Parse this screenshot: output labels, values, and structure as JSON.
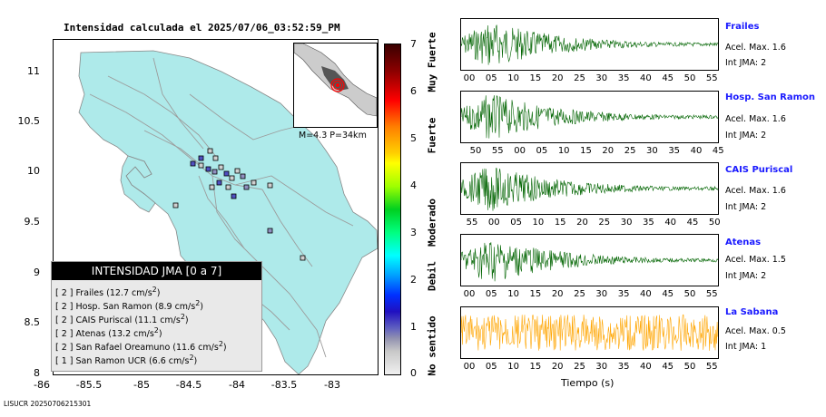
{
  "map": {
    "title": "Intensidad calculada el 2025/07/06_03:52:59_PM",
    "lat_ticks": [
      "11",
      "10.5",
      "10",
      "9.5",
      "9",
      "8.5",
      "8"
    ],
    "lon_ticks": [
      "-86",
      "-85.5",
      "-85",
      "-84.5",
      "-84",
      "-83.5",
      "-83"
    ],
    "inset_label": "M=4.3 P=34km",
    "colors": {
      "land": "#aeeaea",
      "roads": "#9c9c9c",
      "epicenter": "#ff0000"
    }
  },
  "legend": {
    "title": "INTENSIDAD JMA [0 a 7]",
    "items": [
      {
        "level": "[ 2 ]",
        "name": "Frailes",
        "value": "(12.7 cm/s",
        "sup": "2",
        "close": ")"
      },
      {
        "level": "[ 2 ]",
        "name": "Hosp. San Ramon",
        "value": "(8.9 cm/s",
        "sup": "2",
        "close": ")"
      },
      {
        "level": "[ 2 ]",
        "name": "CAIS Puriscal",
        "value": "(11.1 cm/s",
        "sup": "2",
        "close": ")"
      },
      {
        "level": "[ 2 ]",
        "name": "Atenas",
        "value": "(13.2 cm/s",
        "sup": "2",
        "close": ")"
      },
      {
        "level": "[ 2 ]",
        "name": "San Rafael Oreamuno",
        "value": "(11.6 cm/s",
        "sup": "2",
        "close": ")"
      },
      {
        "level": "[ 1 ]",
        "name": "San Ramon UCR",
        "value": "(6.6 cm/s",
        "sup": "2",
        "close": ")"
      }
    ]
  },
  "colorbar": {
    "ticks": [
      "7",
      "6",
      "5",
      "4",
      "3",
      "2",
      "1",
      "0"
    ],
    "categories": [
      "Muy Fuerte",
      "Fuerte",
      "Moderado",
      "Debil",
      "No sentido"
    ]
  },
  "traces": [
    {
      "station": "Frailes",
      "accel": "Acel. Max. 1.6",
      "jma": "Int JMA: 2",
      "color": "#006400",
      "ticks": [
        "00",
        "05",
        "10",
        "15",
        "20",
        "25",
        "30",
        "35",
        "40",
        "45",
        "50",
        "55"
      ]
    },
    {
      "station": "Hosp. San Ramon",
      "accel": "Acel. Max. 1.6",
      "jma": "Int JMA: 2",
      "color": "#006400",
      "ticks": [
        "50",
        "55",
        "00",
        "05",
        "10",
        "15",
        "20",
        "25",
        "30",
        "35",
        "40",
        "45"
      ]
    },
    {
      "station": "CAIS Puriscal",
      "accel": "Acel. Max. 1.6",
      "jma": "Int JMA: 2",
      "color": "#006400",
      "ticks": [
        "55",
        "00",
        "05",
        "10",
        "15",
        "20",
        "25",
        "30",
        "35",
        "40",
        "45",
        "50"
      ]
    },
    {
      "station": "Atenas",
      "accel": "Acel. Max. 1.5",
      "jma": "Int JMA: 2",
      "color": "#006400",
      "ticks": [
        "00",
        "05",
        "10",
        "15",
        "20",
        "25",
        "30",
        "35",
        "40",
        "45",
        "50",
        "55"
      ]
    },
    {
      "station": "La Sabana",
      "accel": "Acel. Max. 0.5",
      "jma": "Int JMA: 1",
      "color": "#ffa500",
      "ticks": [
        "00",
        "05",
        "10",
        "15",
        "20",
        "25",
        "30",
        "35",
        "40",
        "45",
        "50",
        "55"
      ]
    }
  ],
  "xlabel": "Tiempo (s)",
  "footer": "LISUCR 20250706215301"
}
